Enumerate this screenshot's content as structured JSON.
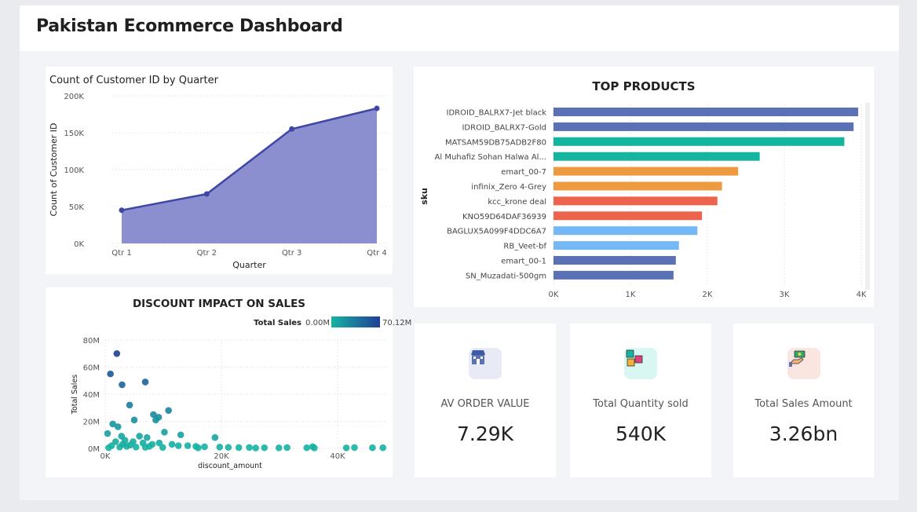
{
  "dashboard": {
    "title": "Pakistan Ecommerce Dashboard"
  },
  "colors": {
    "area_fill": "#8b8fcf",
    "area_line": "#3f47a6",
    "bar_blue": "#5a72b5",
    "bar_teal": "#14b59e",
    "bar_orange": "#ee9a40",
    "bar_red": "#ec644c",
    "bar_lightblue": "#74b9f5",
    "scatter_teal": "#16b3a2",
    "scatter_navy": "#1f3f97"
  },
  "chart_data": [
    {
      "id": "area",
      "type": "area",
      "title": "Count of Customer ID by Quarter",
      "xlabel": "Quarter",
      "ylabel": "Count of Customer ID",
      "categories": [
        "Qtr 1",
        "Qtr 2",
        "Qtr 3",
        "Qtr 4"
      ],
      "values": [
        45000,
        67000,
        155000,
        183000
      ],
      "ylim": [
        0,
        200000
      ],
      "yticks": [
        0,
        50000,
        100000,
        150000,
        200000
      ],
      "ytick_labels": [
        "0K",
        "50K",
        "100K",
        "150K",
        "200K"
      ],
      "grid": true
    },
    {
      "id": "bars",
      "type": "bar",
      "orientation": "horizontal",
      "title": "TOP PRODUCTS",
      "ylabel": "sku",
      "categories": [
        "IDROID_BALRX7-Jet black",
        "IDROID_BALRX7-Gold",
        "MATSAM59DB75ADB2F80",
        "Al Muhafiz Sohan Halwa Al...",
        "emart_00-7",
        "infinix_Zero 4-Grey",
        "kcc_krone deal",
        "KNO59D64DAF36939",
        "BAGLUX5A099F4DDC6A7",
        "RB_Veet-bf",
        "emart_00-1",
        "SN_Muzadati-500gm"
      ],
      "values": [
        3960,
        3900,
        3780,
        2680,
        2400,
        2190,
        2130,
        1930,
        1870,
        1630,
        1590,
        1560
      ],
      "bar_colors": [
        "#5a72b5",
        "#5a72b5",
        "#14b59e",
        "#14b59e",
        "#ee9a40",
        "#ee9a40",
        "#ec644c",
        "#ec644c",
        "#74b9f5",
        "#74b9f5",
        "#5a72b5",
        "#5a72b5"
      ],
      "xlim": [
        0,
        4000
      ],
      "xticks": [
        0,
        1000,
        2000,
        3000,
        4000
      ],
      "xtick_labels": [
        "0K",
        "1K",
        "2K",
        "3K",
        "4K"
      ],
      "grid": true
    },
    {
      "id": "scatter",
      "type": "scatter",
      "title": "DISCOUNT IMPACT ON SALES",
      "xlabel": "discount_amount",
      "ylabel": "Total Sales",
      "legend": {
        "label": "Total Sales",
        "min_label": "0.00M",
        "max_label": "70.12M",
        "placement": "top-right"
      },
      "xlim": [
        0,
        50000
      ],
      "ylim": [
        0,
        80000000
      ],
      "xticks": [
        0,
        20000,
        40000
      ],
      "xtick_labels": [
        "0K",
        "20K",
        "40K"
      ],
      "yticks": [
        0,
        20000000,
        40000000,
        60000000,
        80000000
      ],
      "ytick_labels": [
        "0M",
        "20M",
        "40M",
        "60M",
        "80M"
      ],
      "points": [
        [
          2000,
          70000000
        ],
        [
          900,
          55000000
        ],
        [
          2900,
          47000000
        ],
        [
          6900,
          49000000
        ],
        [
          10900,
          28000000
        ],
        [
          9200,
          23000000
        ],
        [
          4200,
          32000000
        ],
        [
          8300,
          25000000
        ],
        [
          5000,
          21000000
        ],
        [
          8700,
          21000000
        ],
        [
          1300,
          18000000
        ],
        [
          2200,
          16000000
        ],
        [
          10200,
          12000000
        ],
        [
          13000,
          10000000
        ],
        [
          18900,
          8000000
        ],
        [
          400,
          11000000
        ],
        [
          2800,
          9000000
        ],
        [
          5900,
          9000000
        ],
        [
          7200,
          8000000
        ],
        [
          3400,
          6000000
        ],
        [
          1800,
          5000000
        ],
        [
          4800,
          5000000
        ],
        [
          6500,
          4000000
        ],
        [
          8100,
          3000000
        ],
        [
          9300,
          4000000
        ],
        [
          11500,
          3000000
        ],
        [
          12600,
          2000000
        ],
        [
          14200,
          2000000
        ],
        [
          15600,
          1500000
        ],
        [
          17100,
          1200000
        ],
        [
          19700,
          1000000
        ],
        [
          21200,
          800000
        ],
        [
          23000,
          600000
        ],
        [
          24800,
          700000
        ],
        [
          27400,
          500000
        ],
        [
          29900,
          400000
        ],
        [
          31300,
          600000
        ],
        [
          34700,
          500000
        ],
        [
          35700,
          1300000
        ],
        [
          41500,
          400000
        ],
        [
          42900,
          600000
        ],
        [
          46000,
          500000
        ],
        [
          47800,
          500000
        ],
        [
          1100,
          2000000
        ],
        [
          2500,
          1000000
        ],
        [
          3700,
          1500000
        ],
        [
          5300,
          1000000
        ],
        [
          6900,
          800000
        ],
        [
          9900,
          700000
        ],
        [
          16000,
          400000
        ],
        [
          25900,
          300000
        ],
        [
          36000,
          300000
        ],
        [
          600,
          500000
        ],
        [
          3000,
          3000000
        ],
        [
          4300,
          2500000
        ],
        [
          7600,
          1500000
        ]
      ],
      "grid": true
    }
  ],
  "kpis": [
    {
      "id": "avg",
      "label": "AV ORDER VALUE",
      "value": "7.29K",
      "icon": "store-icon"
    },
    {
      "id": "qty",
      "label": "Total Quantity sold",
      "value": "540K",
      "icon": "boxes-icon"
    },
    {
      "id": "amt",
      "label": "Total Sales Amount",
      "value": "3.26bn",
      "icon": "hand-money-icon"
    }
  ]
}
